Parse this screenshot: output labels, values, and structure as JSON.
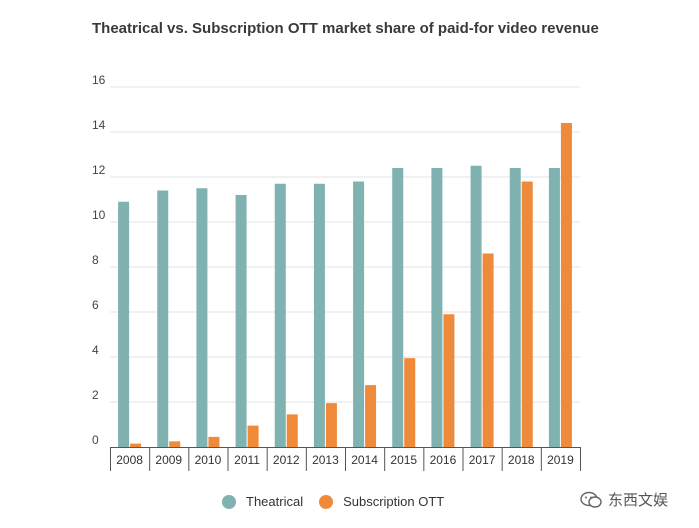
{
  "chart_data": {
    "type": "bar",
    "title": "Theatrical vs. Subscription OTT market share of paid-for video revenue",
    "xlabel": "",
    "ylabel": "",
    "ylim": [
      0,
      16
    ],
    "yticks": [
      0,
      2,
      4,
      6,
      8,
      10,
      12,
      14,
      16
    ],
    "grid": true,
    "legend_position": "bottom",
    "categories": [
      "2008",
      "2009",
      "2010",
      "2011",
      "2012",
      "2013",
      "2014",
      "2015",
      "2016",
      "2017",
      "2018",
      "2019"
    ],
    "series": [
      {
        "name": "Theatrical",
        "color": "#7fb2b0",
        "values": [
          10.9,
          11.4,
          11.5,
          11.2,
          11.7,
          11.7,
          11.8,
          12.4,
          12.4,
          12.5,
          12.4,
          12.4
        ]
      },
      {
        "name": "Subscription OTT",
        "color": "#f08a3b",
        "values": [
          0.15,
          0.25,
          0.45,
          0.95,
          1.45,
          1.95,
          2.75,
          3.95,
          5.9,
          8.6,
          11.8,
          14.4
        ]
      }
    ]
  },
  "watermark": {
    "text": "东西文娱",
    "icon": "wechat-icon"
  }
}
